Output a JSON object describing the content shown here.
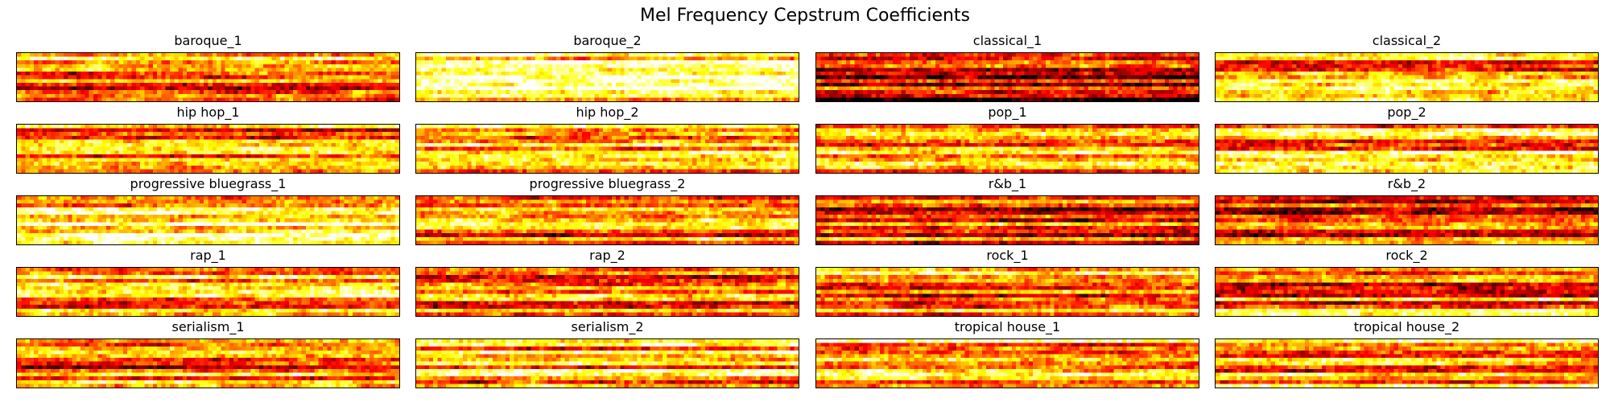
{
  "title": "Mel Frequency Cepstrum Coefficients",
  "colors": {
    "colormap": "hot",
    "frame": "#000000",
    "background": "#ffffff"
  },
  "chart_data": {
    "type": "heatmap",
    "title": "Mel Frequency Cepstrum Coefficients",
    "colormap": "hot",
    "axes_ticks": false,
    "grid": false,
    "panels": [
      "baroque_1",
      "baroque_2",
      "classical_1",
      "classical_2",
      "hip hop_1",
      "hip hop_2",
      "pop_1",
      "pop_2",
      "progressive bluegrass_1",
      "progressive bluegrass_2",
      "r&b_1",
      "r&b_2",
      "rap_1",
      "rap_2",
      "rock_1",
      "rock_2",
      "serialism_1",
      "serialism_2",
      "tropical house_1",
      "tropical house_2"
    ],
    "mean_intensity": [
      0.52,
      0.78,
      0.28,
      0.6,
      0.55,
      0.58,
      0.62,
      0.63,
      0.72,
      0.55,
      0.48,
      0.42,
      0.55,
      0.5,
      0.58,
      0.56,
      0.5,
      0.65,
      0.7,
      0.63
    ]
  }
}
